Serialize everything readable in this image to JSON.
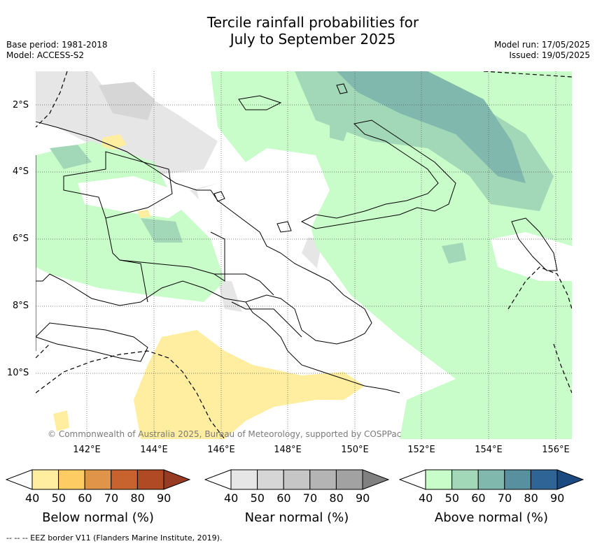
{
  "title_line1": "Tercile rainfall probabilities for",
  "title_line2": "July to September 2025",
  "base_period": "Base period: 1981-2018",
  "model": "Model: ACCESS-S2",
  "model_run": "Model run: 17/05/2025",
  "issued": "Issued: 19/05/2025",
  "copyright": "© Commonwealth of Australia 2025, Bureau of Meteorology, supported by COSPPac",
  "footer": "--  --  -- EEZ border V11 (Flanders Marine Institute, 2019).",
  "lat_labels": [
    "2°S",
    "4°S",
    "6°S",
    "8°S",
    "10°S"
  ],
  "lon_labels": [
    "142°E",
    "144°E",
    "146°E",
    "148°E",
    "150°E",
    "152°E",
    "154°E",
    "156°E"
  ],
  "colorbars": [
    {
      "title": "Below normal (%)",
      "ticks": [
        "40",
        "50",
        "60",
        "70",
        "80",
        "90"
      ],
      "colors": [
        "#ffffff",
        "#ffeea0",
        "#fdcc62",
        "#e0944a",
        "#c8622e",
        "#af4a25",
        "#973b23"
      ]
    },
    {
      "title": "Near normal (%)",
      "ticks": [
        "40",
        "50",
        "60",
        "70",
        "80",
        "90"
      ],
      "colors": [
        "#ffffff",
        "#e6e6e6",
        "#d6d6d6",
        "#c6c6c6",
        "#b4b4b4",
        "#a2a2a2",
        "#808080"
      ]
    },
    {
      "title": "Above normal (%)",
      "ticks": [
        "40",
        "50",
        "60",
        "70",
        "80",
        "90"
      ],
      "colors": [
        "#ffffff",
        "#c8fcc8",
        "#a2d8b8",
        "#80b8ae",
        "#5890a0",
        "#2e6496",
        "#1a4a80"
      ]
    }
  ]
}
